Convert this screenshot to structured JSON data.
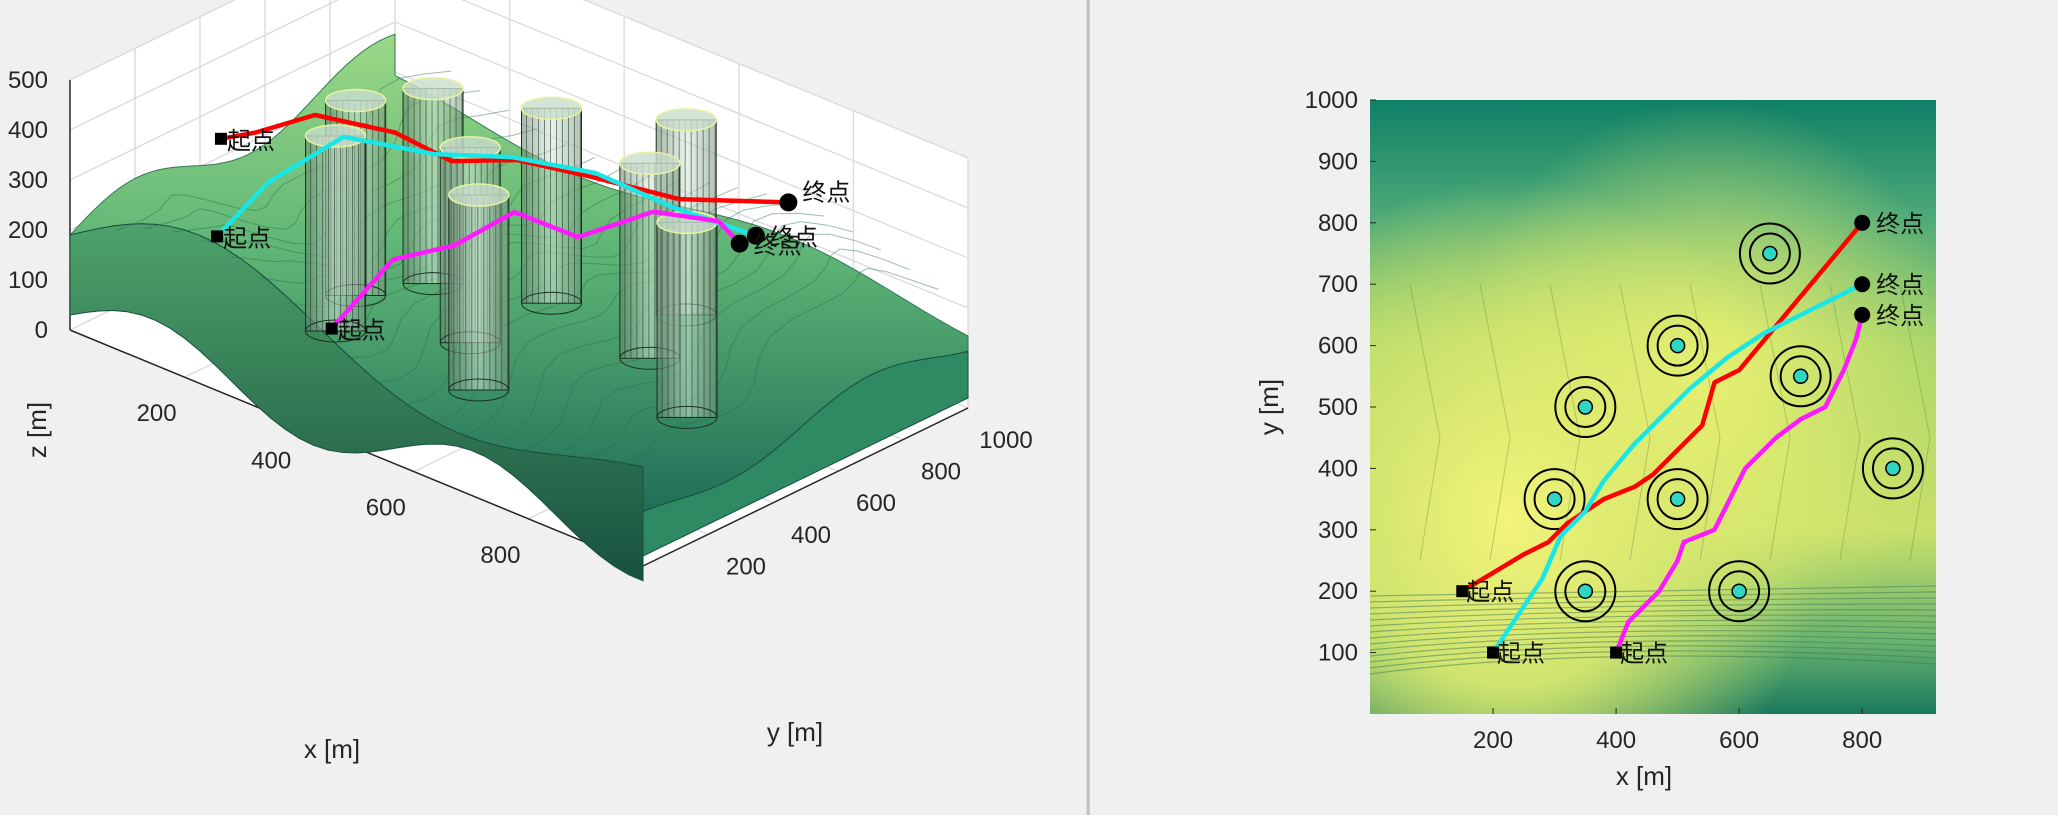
{
  "chart_data": [
    {
      "type": "surface3d",
      "xlabel": "x [m]",
      "ylabel": "y [m]",
      "zlabel": "z [m]",
      "xticks": [
        "200",
        "400",
        "600",
        "800"
      ],
      "yticks": [
        "200",
        "400",
        "600",
        "800",
        "1000"
      ],
      "zticks": [
        "0",
        "100",
        "200",
        "300",
        "400",
        "500"
      ],
      "xlim": [
        0,
        1000
      ],
      "ylim": [
        0,
        1000
      ],
      "zlim": [
        0,
        500
      ],
      "grid": true,
      "start_label": "起点",
      "end_label": "终点",
      "colors": {
        "red": "#ff0000",
        "cyan": "#19e6e6",
        "magenta": "#ff19ff",
        "terrain_high": "#8fd47a",
        "terrain_low": "#2f8a6a",
        "cylinder": "#b9d8c2"
      },
      "paths": [
        {
          "color": "red",
          "points": [
            [
              150,
              200,
              390
            ],
            [
              200,
              220,
              420
            ],
            [
              280,
              260,
              480
            ],
            [
              380,
              330,
              470
            ],
            [
              450,
              380,
              430
            ],
            [
              520,
              460,
              440
            ],
            [
              600,
              540,
              420
            ],
            [
              700,
              640,
              390
            ],
            [
              800,
              800,
              380
            ]
          ]
        },
        {
          "color": "cyan",
          "points": [
            [
              200,
              100,
              250
            ],
            [
              250,
              170,
              360
            ],
            [
              330,
              260,
              460
            ],
            [
              420,
              380,
              430
            ],
            [
              500,
              480,
              430
            ],
            [
              600,
              560,
              420
            ],
            [
              700,
              620,
              380
            ],
            [
              800,
              700,
              345
            ]
          ]
        },
        {
          "color": "magenta",
          "points": [
            [
              400,
              100,
              160
            ],
            [
              450,
              200,
              290
            ],
            [
              500,
              300,
              310
            ],
            [
              560,
              380,
              380
            ],
            [
              620,
              470,
              330
            ],
            [
              700,
              560,
              390
            ],
            [
              780,
              620,
              390
            ],
            [
              800,
              650,
              345
            ]
          ]
        }
      ]
    },
    {
      "type": "heatmap",
      "xlabel": "x [m]",
      "ylabel": "y [m]",
      "xticks": [
        "200",
        "400",
        "600",
        "800"
      ],
      "yticks": [
        "100",
        "200",
        "300",
        "400",
        "500",
        "600",
        "700",
        "800",
        "900",
        "1000"
      ],
      "xlim": [
        0,
        920
      ],
      "ylim": [
        0,
        1000
      ],
      "start_label": "起点",
      "end_label": "终点",
      "threats": [
        {
          "x": 650,
          "y": 750,
          "r": 55
        },
        {
          "x": 500,
          "y": 600,
          "r": 55
        },
        {
          "x": 700,
          "y": 550,
          "r": 55
        },
        {
          "x": 350,
          "y": 500,
          "r": 55
        },
        {
          "x": 300,
          "y": 350,
          "r": 55
        },
        {
          "x": 500,
          "y": 350,
          "r": 55
        },
        {
          "x": 850,
          "y": 400,
          "r": 55
        },
        {
          "x": 350,
          "y": 200,
          "r": 55
        },
        {
          "x": 600,
          "y": 200,
          "r": 55
        }
      ],
      "paths": [
        {
          "color": "red",
          "points": [
            [
              150,
              200
            ],
            [
              200,
              230
            ],
            [
              250,
              260
            ],
            [
              290,
              280
            ],
            [
              320,
              310
            ],
            [
              380,
              350
            ],
            [
              430,
              370
            ],
            [
              460,
              390
            ],
            [
              490,
              420
            ],
            [
              540,
              470
            ],
            [
              560,
              540
            ],
            [
              600,
              560
            ],
            [
              650,
              620
            ],
            [
              700,
              680
            ],
            [
              750,
              740
            ],
            [
              800,
              800
            ]
          ]
        },
        {
          "color": "cyan",
          "points": [
            [
              200,
              100
            ],
            [
              240,
              160
            ],
            [
              280,
              220
            ],
            [
              310,
              290
            ],
            [
              350,
              330
            ],
            [
              380,
              380
            ],
            [
              430,
              440
            ],
            [
              470,
              480
            ],
            [
              520,
              530
            ],
            [
              580,
              580
            ],
            [
              640,
              620
            ],
            [
              700,
              650
            ],
            [
              760,
              680
            ],
            [
              800,
              700
            ]
          ]
        },
        {
          "color": "magenta",
          "points": [
            [
              400,
              100
            ],
            [
              420,
              150
            ],
            [
              440,
              170
            ],
            [
              470,
              200
            ],
            [
              500,
              250
            ],
            [
              510,
              280
            ],
            [
              560,
              300
            ],
            [
              580,
              340
            ],
            [
              610,
              400
            ],
            [
              640,
              430
            ],
            [
              660,
              450
            ],
            [
              700,
              480
            ],
            [
              740,
              500
            ],
            [
              770,
              560
            ],
            [
              790,
              610
            ],
            [
              800,
              650
            ]
          ]
        }
      ]
    }
  ]
}
